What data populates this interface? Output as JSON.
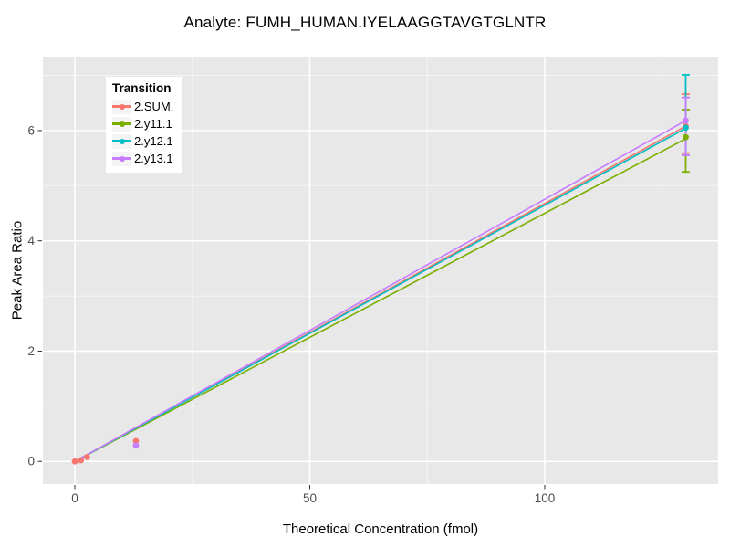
{
  "chart_data": {
    "type": "scatter",
    "title": "Analyte: FUMH_HUMAN.IYELAAGGTAVGTGLNTR",
    "xlabel": "Theoretical Concentration (fmol)",
    "ylabel": "Peak Area Ratio",
    "xlim": [
      -6.8,
      136.9
    ],
    "ylim": [
      -0.41,
      7.34
    ],
    "x_major_ticks": [
      0,
      50,
      100
    ],
    "x_minor_ticks": [
      25,
      75,
      125
    ],
    "y_major_ticks": [
      0,
      2,
      4,
      6
    ],
    "y_minor_ticks": [
      1,
      3,
      5,
      7
    ],
    "grid": "major and minor, white on gray panel",
    "panel_bg": "#E8E8E8",
    "grid_major_color": "#FFFFFF",
    "grid_minor_color": "rgba(255,255,255,0.55)",
    "tick_label_color": "#4D4D4D",
    "tick_mark_color": "#333333",
    "legend": {
      "title": "Transition",
      "position": "top-left-inside"
    },
    "series": [
      {
        "name": "2.SUM.",
        "color": "#F8766D",
        "marker": "circle",
        "points": [
          {
            "x": 0,
            "y": 0.0
          },
          {
            "x": 1.3,
            "y": 0.02
          },
          {
            "x": 2.6,
            "y": 0.08
          },
          {
            "x": 13,
            "y": 0.37
          },
          {
            "x": 130,
            "y": 6.08,
            "err_lo": 5.59,
            "err_hi": 6.66
          }
        ],
        "fit_line": {
          "x": [
            0,
            130
          ],
          "y": [
            0,
            6.08
          ]
        }
      },
      {
        "name": "2.y11.1",
        "color": "#7CAE00",
        "marker": "circle",
        "points": [
          {
            "x": 130,
            "y": 5.88,
            "err_lo": 5.25,
            "err_hi": 6.38
          }
        ],
        "fit_line": {
          "x": [
            0,
            130
          ],
          "y": [
            0,
            5.85
          ]
        }
      },
      {
        "name": "2.y12.1",
        "color": "#00BFC4",
        "marker": "circle",
        "points": [
          {
            "x": 130,
            "y": 6.05,
            "err_lo": 5.55,
            "err_hi": 7.01
          }
        ],
        "fit_line": {
          "x": [
            0,
            130
          ],
          "y": [
            0,
            6.04
          ]
        }
      },
      {
        "name": "2.y13.1",
        "color": "#C77CFF",
        "marker": "circle",
        "points": [
          {
            "x": 13,
            "y": 0.29
          },
          {
            "x": 130,
            "y": 6.18,
            "err_lo": 5.55,
            "err_hi": 6.6
          }
        ],
        "fit_line": {
          "x": [
            0,
            130
          ],
          "y": [
            0,
            6.18
          ]
        }
      }
    ]
  }
}
